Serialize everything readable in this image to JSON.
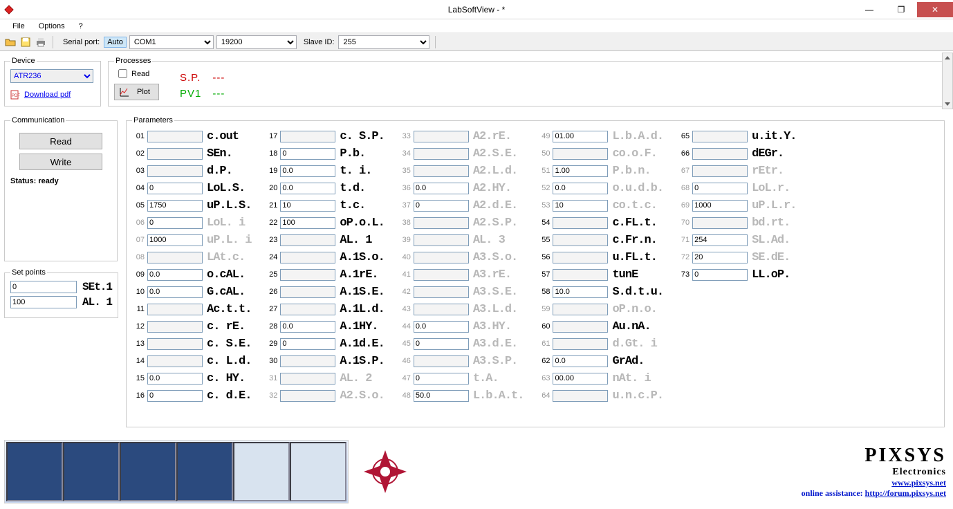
{
  "window": {
    "title": "LabSoftView -  *"
  },
  "menu": {
    "file": "File",
    "options": "Options",
    "help": "?"
  },
  "toolbar": {
    "serial_label": "Serial port:",
    "auto": "Auto",
    "com": "COM1",
    "baud": "19200",
    "slave_label": "Slave ID:",
    "slave": "255"
  },
  "device": {
    "legend": "Device",
    "selected": "ATR236",
    "download": "Download pdf"
  },
  "processes": {
    "legend": "Processes",
    "read": "Read",
    "plot": "Plot",
    "sp_label": "S.P.",
    "sp_value": "---",
    "pv_label": "PV1",
    "pv_value": "---"
  },
  "comm": {
    "legend": "Communication",
    "read": "Read",
    "write": "Write",
    "status_label": "Status:",
    "status_value": "ready"
  },
  "setpoints": {
    "legend": "Set points",
    "rows": [
      {
        "value": "0",
        "label": "SEt.1"
      },
      {
        "value": "100",
        "label": "AL. 1"
      }
    ]
  },
  "parameters": {
    "legend": "Parameters",
    "cols": [
      [
        {
          "n": "01",
          "v": "",
          "name": "c.out",
          "dim": false,
          "en": false
        },
        {
          "n": "02",
          "v": "",
          "name": "SEn.",
          "dim": false,
          "en": false
        },
        {
          "n": "03",
          "v": "",
          "name": "d.P.",
          "dim": false,
          "en": false
        },
        {
          "n": "04",
          "v": "0",
          "name": "LoL.S.",
          "dim": false,
          "en": true
        },
        {
          "n": "05",
          "v": "1750",
          "name": "uP.L.S.",
          "dim": false,
          "en": true
        },
        {
          "n": "06",
          "v": "0",
          "name": "LoL. i",
          "dim": true,
          "en": true
        },
        {
          "n": "07",
          "v": "1000",
          "name": "uP.L. i",
          "dim": true,
          "en": true
        },
        {
          "n": "08",
          "v": "",
          "name": "LAt.c.",
          "dim": true,
          "en": false
        },
        {
          "n": "09",
          "v": "0.0",
          "name": "o.cAL.",
          "dim": false,
          "en": true
        },
        {
          "n": "10",
          "v": "0.0",
          "name": "G.cAL.",
          "dim": false,
          "en": true
        },
        {
          "n": "11",
          "v": "",
          "name": "Ac.t.t.",
          "dim": false,
          "en": false
        },
        {
          "n": "12",
          "v": "",
          "name": "c. rE.",
          "dim": false,
          "en": false
        },
        {
          "n": "13",
          "v": "",
          "name": "c. S.E.",
          "dim": false,
          "en": false
        },
        {
          "n": "14",
          "v": "",
          "name": "c. L.d.",
          "dim": false,
          "en": false
        },
        {
          "n": "15",
          "v": "0.0",
          "name": "c. HY.",
          "dim": false,
          "en": true
        },
        {
          "n": "16",
          "v": "0",
          "name": "c. d.E.",
          "dim": false,
          "en": true
        }
      ],
      [
        {
          "n": "17",
          "v": "",
          "name": "c. S.P.",
          "dim": false,
          "en": false
        },
        {
          "n": "18",
          "v": "0",
          "name": "P.b.",
          "dim": false,
          "en": true
        },
        {
          "n": "19",
          "v": "0.0",
          "name": "t. i.",
          "dim": false,
          "en": true
        },
        {
          "n": "20",
          "v": "0.0",
          "name": "t.d.",
          "dim": false,
          "en": true
        },
        {
          "n": "21",
          "v": "10",
          "name": "t.c.",
          "dim": false,
          "en": true
        },
        {
          "n": "22",
          "v": "100",
          "name": "oP.o.L.",
          "dim": false,
          "en": true
        },
        {
          "n": "23",
          "v": "",
          "name": "AL. 1",
          "dim": false,
          "en": false
        },
        {
          "n": "24",
          "v": "",
          "name": "A.1S.o.",
          "dim": false,
          "en": false
        },
        {
          "n": "25",
          "v": "",
          "name": "A.1rE.",
          "dim": false,
          "en": false
        },
        {
          "n": "26",
          "v": "",
          "name": "A.1S.E.",
          "dim": false,
          "en": false
        },
        {
          "n": "27",
          "v": "",
          "name": "A.1L.d.",
          "dim": false,
          "en": false
        },
        {
          "n": "28",
          "v": "0.0",
          "name": "A.1HY.",
          "dim": false,
          "en": true
        },
        {
          "n": "29",
          "v": "0",
          "name": "A.1d.E.",
          "dim": false,
          "en": true
        },
        {
          "n": "30",
          "v": "",
          "name": "A.1S.P.",
          "dim": false,
          "en": false
        },
        {
          "n": "31",
          "v": "",
          "name": "AL. 2",
          "dim": true,
          "en": false
        },
        {
          "n": "32",
          "v": "",
          "name": "A2.S.o.",
          "dim": true,
          "en": false
        }
      ],
      [
        {
          "n": "33",
          "v": "",
          "name": "A2.rE.",
          "dim": true,
          "en": false
        },
        {
          "n": "34",
          "v": "",
          "name": "A2.S.E.",
          "dim": true,
          "en": false
        },
        {
          "n": "35",
          "v": "",
          "name": "A2.L.d.",
          "dim": true,
          "en": false
        },
        {
          "n": "36",
          "v": "0.0",
          "name": "A2.HY.",
          "dim": true,
          "en": true
        },
        {
          "n": "37",
          "v": "0",
          "name": "A2.d.E.",
          "dim": true,
          "en": true
        },
        {
          "n": "38",
          "v": "",
          "name": "A2.S.P.",
          "dim": true,
          "en": false
        },
        {
          "n": "39",
          "v": "",
          "name": "AL. 3",
          "dim": true,
          "en": false
        },
        {
          "n": "40",
          "v": "",
          "name": "A3.S.o.",
          "dim": true,
          "en": false
        },
        {
          "n": "41",
          "v": "",
          "name": "A3.rE.",
          "dim": true,
          "en": false
        },
        {
          "n": "42",
          "v": "",
          "name": "A3.S.E.",
          "dim": true,
          "en": false
        },
        {
          "n": "43",
          "v": "",
          "name": "A3.L.d.",
          "dim": true,
          "en": false
        },
        {
          "n": "44",
          "v": "0.0",
          "name": "A3.HY.",
          "dim": true,
          "en": true
        },
        {
          "n": "45",
          "v": "0",
          "name": "A3.d.E.",
          "dim": true,
          "en": true
        },
        {
          "n": "46",
          "v": "",
          "name": "A3.S.P.",
          "dim": true,
          "en": false
        },
        {
          "n": "47",
          "v": "0",
          "name": "t.A.",
          "dim": true,
          "en": true
        },
        {
          "n": "48",
          "v": "50.0",
          "name": "L.b.A.t.",
          "dim": true,
          "en": true
        }
      ],
      [
        {
          "n": "49",
          "v": "01.00",
          "name": "L.b.A.d.",
          "dim": true,
          "en": true
        },
        {
          "n": "50",
          "v": "",
          "name": "co.o.F.",
          "dim": true,
          "en": false
        },
        {
          "n": "51",
          "v": "1.00",
          "name": "P.b.n.",
          "dim": true,
          "en": true
        },
        {
          "n": "52",
          "v": "0.0",
          "name": "o.u.d.b.",
          "dim": true,
          "en": true
        },
        {
          "n": "53",
          "v": "10",
          "name": "co.t.c.",
          "dim": true,
          "en": true
        },
        {
          "n": "54",
          "v": "",
          "name": "c.FL.t.",
          "dim": false,
          "en": false
        },
        {
          "n": "55",
          "v": "",
          "name": "c.Fr.n.",
          "dim": false,
          "en": false
        },
        {
          "n": "56",
          "v": "",
          "name": "u.FL.t.",
          "dim": false,
          "en": false
        },
        {
          "n": "57",
          "v": "",
          "name": "tunE",
          "dim": false,
          "en": false
        },
        {
          "n": "58",
          "v": "10.0",
          "name": "S.d.t.u.",
          "dim": false,
          "en": true
        },
        {
          "n": "59",
          "v": "",
          "name": "oP.n.o.",
          "dim": true,
          "en": false
        },
        {
          "n": "60",
          "v": "",
          "name": "Au.nA.",
          "dim": false,
          "en": false
        },
        {
          "n": "61",
          "v": "",
          "name": "d.Gt. i",
          "dim": true,
          "en": false
        },
        {
          "n": "62",
          "v": "0.0",
          "name": "GrAd.",
          "dim": false,
          "en": true
        },
        {
          "n": "63",
          "v": "00.00",
          "name": "nAt. i",
          "dim": true,
          "en": true
        },
        {
          "n": "64",
          "v": "",
          "name": "u.n.c.P.",
          "dim": true,
          "en": false
        }
      ],
      [
        {
          "n": "65",
          "v": "",
          "name": "u.it.Y.",
          "dim": false,
          "en": false
        },
        {
          "n": "66",
          "v": "",
          "name": "dEGr.",
          "dim": false,
          "en": false
        },
        {
          "n": "67",
          "v": "",
          "name": "rEtr.",
          "dim": true,
          "en": false
        },
        {
          "n": "68",
          "v": "0",
          "name": "LoL.r.",
          "dim": true,
          "en": true
        },
        {
          "n": "69",
          "v": "1000",
          "name": "uP.L.r.",
          "dim": true,
          "en": true
        },
        {
          "n": "70",
          "v": "",
          "name": "bd.rt.",
          "dim": true,
          "en": false
        },
        {
          "n": "71",
          "v": "254",
          "name": "SL.Ad.",
          "dim": true,
          "en": true
        },
        {
          "n": "72",
          "v": "20",
          "name": "SE.dE.",
          "dim": true,
          "en": true
        },
        {
          "n": "73",
          "v": "0",
          "name": "LL.oP.",
          "dim": false,
          "en": true
        }
      ]
    ]
  },
  "footer": {
    "brand": "PIXSYS",
    "sub": "Electronics",
    "site": "www.pixsys.net",
    "assist_label": "online assistance: ",
    "assist_url": "http://forum.pixsys.net"
  }
}
